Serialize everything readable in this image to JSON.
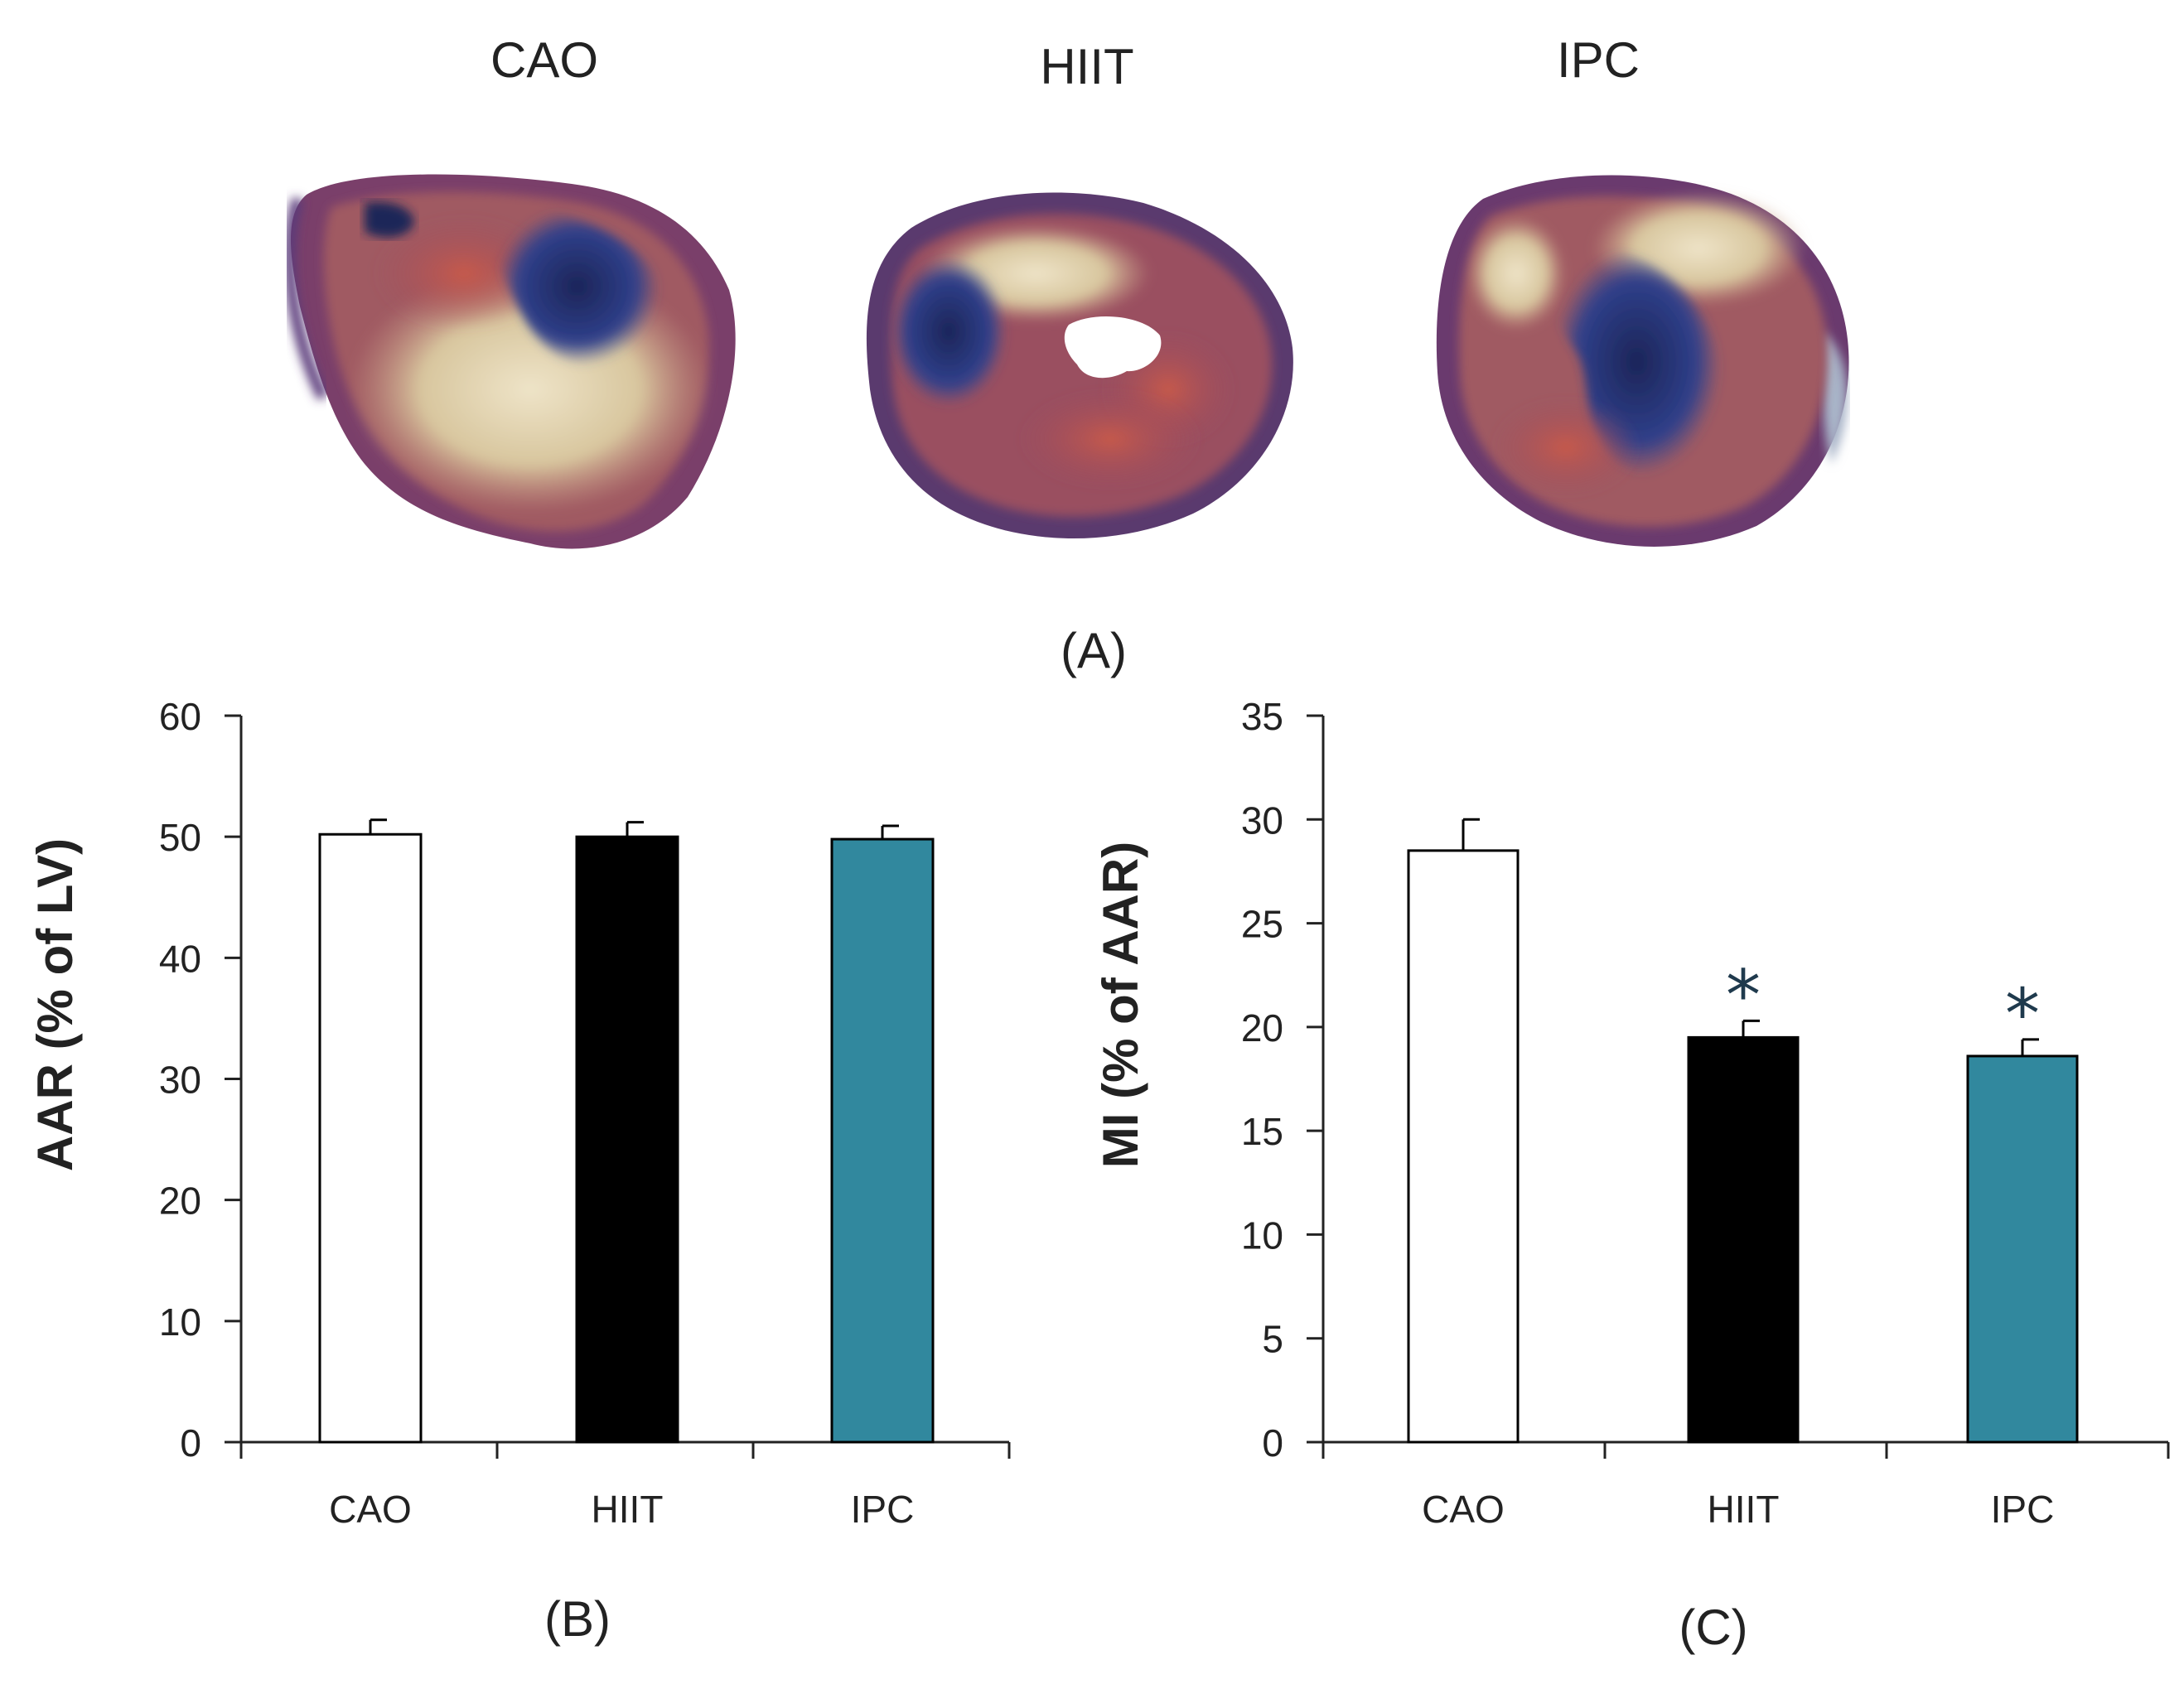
{
  "panel_a": {
    "label": "(A)",
    "images": [
      {
        "title": "CAO",
        "icon": "heart-slice-cao-photo"
      },
      {
        "title": "HIIT",
        "icon": "heart-slice-hiit-photo"
      },
      {
        "title": "IPC",
        "icon": "heart-slice-ipc-photo"
      }
    ]
  },
  "colors": {
    "CAO": "#ffffff",
    "HIIT": "#000000",
    "IPC": "#31889e",
    "axis": "#222222",
    "star": "#1f3a4d"
  },
  "chart_data": [
    {
      "type": "bar",
      "panel_label": "(B)",
      "title": "",
      "xlabel": "",
      "ylabel": "AAR (% of LV)",
      "categories": [
        "CAO",
        "HIIT",
        "IPC"
      ],
      "values": [
        50.2,
        50.0,
        49.8
      ],
      "errors": [
        1.2,
        1.2,
        1.1
      ],
      "significance": [
        "",
        "",
        ""
      ],
      "ylim": [
        0,
        60
      ],
      "yticks": [
        0,
        10,
        20,
        30,
        40,
        50,
        60
      ],
      "grid": false
    },
    {
      "type": "bar",
      "panel_label": "(C)",
      "title": "",
      "xlabel": "",
      "ylabel": "MI (% of AAR)",
      "categories": [
        "CAO",
        "HIIT",
        "IPC"
      ],
      "values": [
        28.5,
        19.5,
        18.6
      ],
      "errors": [
        1.5,
        0.8,
        0.8
      ],
      "significance": [
        "",
        "*",
        "*"
      ],
      "ylim": [
        0,
        35
      ],
      "yticks": [
        0,
        5,
        10,
        15,
        20,
        25,
        30,
        35
      ],
      "grid": false
    }
  ]
}
